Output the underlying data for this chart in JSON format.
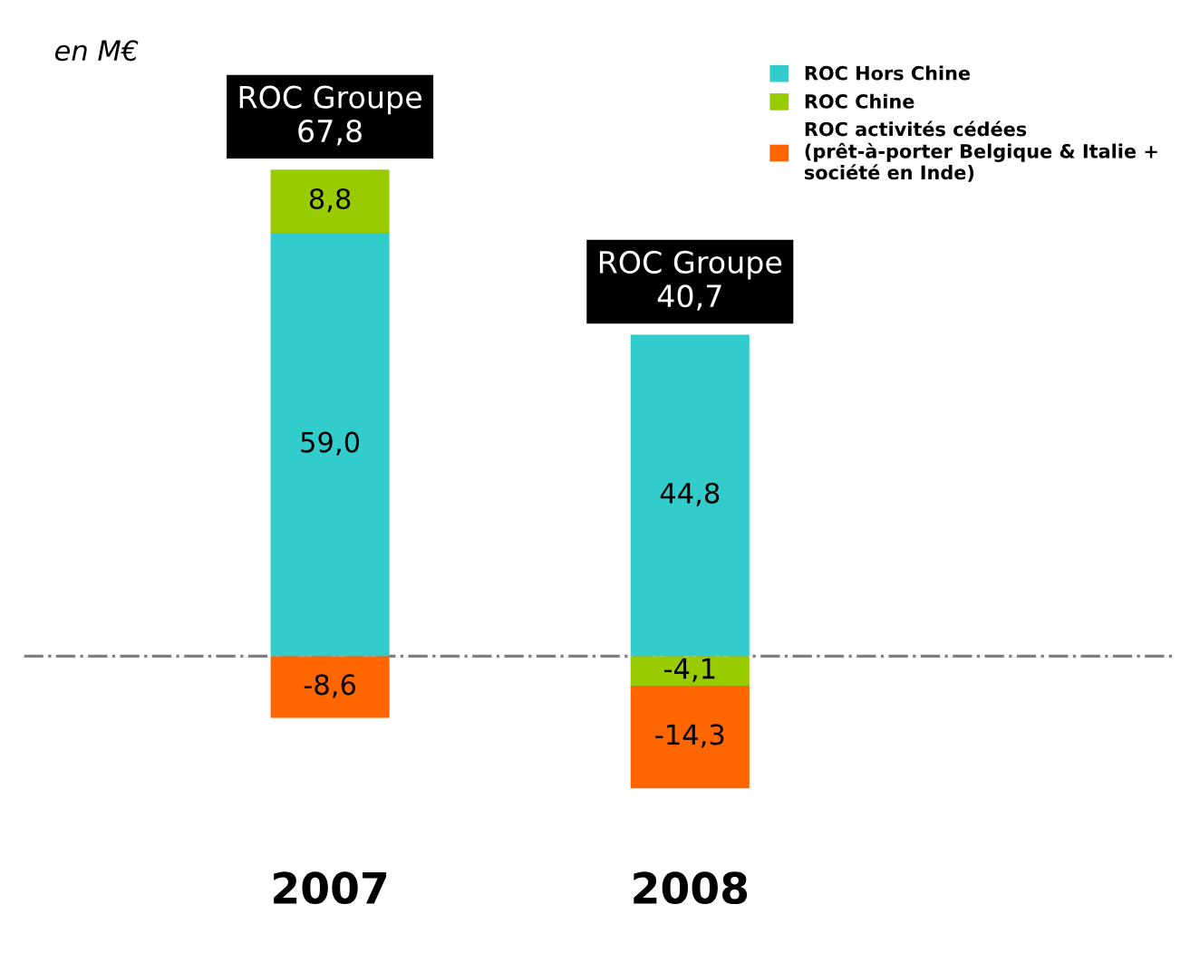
{
  "chart_data": {
    "type": "bar",
    "stacked": true,
    "categories": [
      "2007",
      "2008"
    ],
    "series": [
      {
        "name": "ROC Hors Chine",
        "color": "#33cccc",
        "values": [
          59.0,
          44.8
        ],
        "value_labels": [
          "59,0",
          "44,8"
        ]
      },
      {
        "name": "ROC Chine",
        "color": "#99cc00",
        "values": [
          8.8,
          -4.1
        ],
        "value_labels": [
          "8,8",
          "-4,1"
        ]
      },
      {
        "name": "ROC activités cédées\n(prêt-à-porter Belgique & Italie +\nsociété en Inde)",
        "color": "#ff6600",
        "values": [
          -8.6,
          -14.3
        ],
        "value_labels": [
          "-8,6",
          "-14,3"
        ]
      }
    ],
    "totals": [
      "ROC Groupe\n67,8",
      "ROC Groupe\n40,7"
    ],
    "ref_lines": [
      {
        "axis": "y",
        "value": 0,
        "color": "#808080",
        "line_style": "dashdot"
      }
    ],
    "annotations": [
      "en M€"
    ],
    "legend": "top right",
    "grid": false
  }
}
